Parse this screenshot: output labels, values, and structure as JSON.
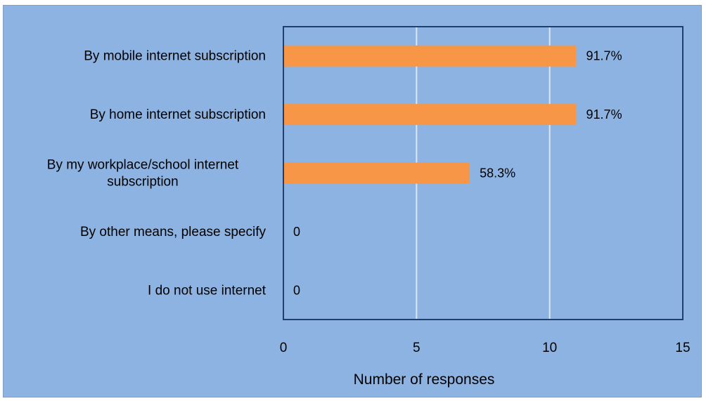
{
  "chart_data": {
    "type": "bar",
    "orientation": "horizontal",
    "categories": [
      "By mobile internet subscription",
      "By home internet subscription",
      "By my workplace/school internet subscription",
      "By other means, please specify",
      "I do not use internet"
    ],
    "category_lines": [
      [
        "By mobile internet subscription"
      ],
      [
        "By home internet subscription"
      ],
      [
        "By my workplace/school internet",
        "subscription"
      ],
      [
        "By other means, please specify"
      ],
      [
        "I do not use internet"
      ]
    ],
    "values": [
      11,
      11,
      7,
      0,
      0
    ],
    "data_labels": [
      "91.7%",
      "91.7%",
      "58.3%",
      "0",
      "0"
    ],
    "xlabel": "Number of responses",
    "ylabel": "",
    "xlim": [
      0,
      15
    ],
    "xticks": [
      "0",
      "5",
      "10",
      "15"
    ],
    "grid": "vertical",
    "legend": "none",
    "colors": {
      "bar": "#f79646",
      "background": "#8db3e2",
      "plot_border": "#1f3f6e",
      "gridline": "#dce6f2"
    }
  }
}
